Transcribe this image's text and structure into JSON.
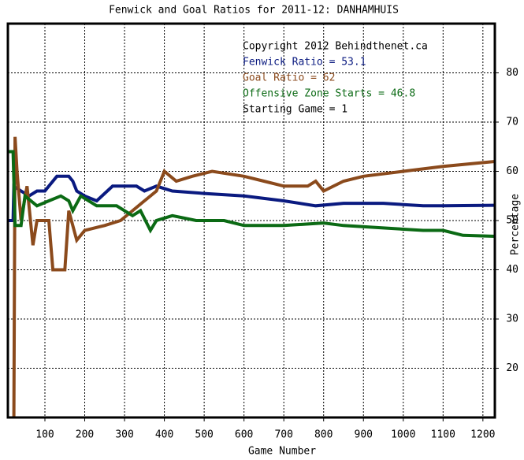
{
  "chart_data": {
    "type": "line",
    "title": "Fenwick and Goal Ratios for 2011-12: DANHAMHUIS",
    "x_label": "Game Number",
    "y_label": "Percentage",
    "annotations": [
      {
        "text": "Copyright 2012 Behindthenet.ca",
        "color": "#000000"
      },
      {
        "text": "Starting Game = 1",
        "color": "#000000"
      }
    ],
    "xlim": [
      7,
      1230
    ],
    "xticks": [
      100,
      200,
      300,
      400,
      500,
      600,
      700,
      800,
      900,
      1000,
      1100,
      1200
    ],
    "ylim": [
      10,
      90
    ],
    "yticks": [
      20,
      30,
      40,
      50,
      60,
      70,
      80
    ],
    "grid": true,
    "series": [
      {
        "name": "Fenwick Ratio = 53.1",
        "color": "#0a1a80",
        "x": [
          7,
          20,
          22,
          40,
          60,
          80,
          100,
          110,
          130,
          160,
          170,
          180,
          200,
          230,
          270,
          330,
          350,
          380,
          420,
          500,
          600,
          700,
          780,
          850,
          950,
          1050,
          1100,
          1230
        ],
        "values": [
          50,
          50,
          57,
          56,
          55,
          56,
          56,
          57,
          59,
          59,
          58,
          56,
          55,
          54,
          57,
          57,
          56,
          57,
          56,
          55.5,
          55,
          54,
          53,
          53.5,
          53.5,
          53,
          53,
          53.1
        ]
      },
      {
        "name": "Goal Ratio = 62",
        "color": "#8b4a1c",
        "x": [
          22,
          25,
          30,
          40,
          55,
          70,
          80,
          110,
          120,
          150,
          160,
          180,
          200,
          250,
          290,
          320,
          350,
          380,
          400,
          430,
          470,
          520,
          600,
          650,
          700,
          760,
          780,
          800,
          850,
          900,
          1000,
          1100,
          1230
        ],
        "values": [
          10,
          67,
          60,
          50,
          57,
          45,
          50,
          50,
          40,
          40,
          52,
          46,
          48,
          49,
          50,
          52,
          54,
          56,
          60,
          58,
          59,
          60,
          59,
          58,
          57,
          57,
          58,
          56,
          58,
          59,
          60,
          61,
          62
        ]
      },
      {
        "name": "Offensive Zone Starts = 46.8",
        "color": "#0b6a14",
        "x": [
          7,
          20,
          25,
          40,
          50,
          80,
          110,
          140,
          160,
          170,
          190,
          230,
          280,
          320,
          340,
          365,
          380,
          420,
          480,
          550,
          600,
          700,
          800,
          850,
          950,
          1050,
          1100,
          1150,
          1230
        ],
        "values": [
          64,
          64,
          49,
          49,
          55,
          53,
          54,
          55,
          54,
          52,
          55,
          53,
          53,
          51,
          52,
          48,
          50,
          51,
          50,
          50,
          49,
          49,
          49.5,
          49,
          48.5,
          48,
          48,
          47,
          46.8
        ]
      }
    ]
  }
}
